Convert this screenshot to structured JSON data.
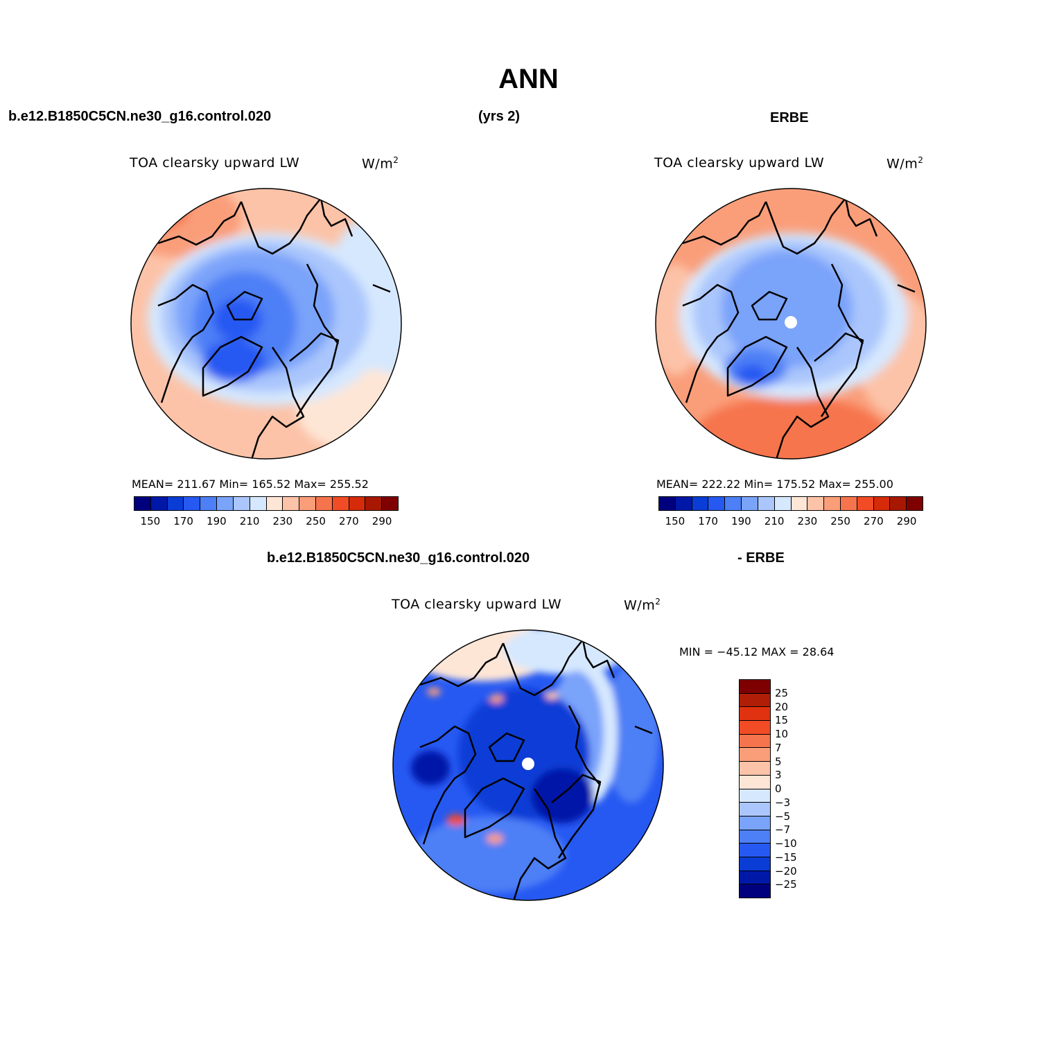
{
  "header": {
    "season": "ANN",
    "case_name": "b.e12.B1850C5CN.ne30_g16.control.020",
    "years": "(yrs 2)",
    "obs_name": "ERBE",
    "diff_case_name": "b.e12.B1850C5CN.ne30_g16.control.020",
    "diff_obs_name": "- ERBE"
  },
  "panels": {
    "model": {
      "variable": "TOA clearsky upward LW",
      "units": "W/m",
      "units_sup": "2",
      "stats": "MEAN= 211.67   Min= 165.52   Max= 255.52"
    },
    "obs": {
      "variable": "TOA clearsky upward LW",
      "units": "W/m",
      "units_sup": "2",
      "stats": "MEAN= 222.22   Min= 175.52   Max= 255.00"
    },
    "diff": {
      "variable": "TOA clearsky upward LW",
      "units": "W/m",
      "units_sup": "2",
      "stats": "MIN = −45.12 MAX =   28.64"
    }
  },
  "colorbar_abs": {
    "tick_labels": [
      "150",
      "170",
      "190",
      "210",
      "230",
      "250",
      "270",
      "290"
    ],
    "colors": [
      "#00007f",
      "#0018a8",
      "#0a3cd6",
      "#2659f2",
      "#4d7ff6",
      "#7aa3fa",
      "#aac6fc",
      "#d6e8fe",
      "#fee6d6",
      "#fcc3a8",
      "#fa9e7a",
      "#f6744d",
      "#f24c26",
      "#d62b0a",
      "#a81800",
      "#7f0000"
    ]
  },
  "colorbar_diff": {
    "tick_labels": [
      "25",
      "20",
      "15",
      "10",
      "7",
      "5",
      "3",
      "0",
      "−3",
      "−5",
      "−7",
      "−10",
      "−15",
      "−20",
      "−25"
    ],
    "colors": [
      "#7f0000",
      "#b01e08",
      "#e03210",
      "#f24c26",
      "#f6744d",
      "#fa9e7a",
      "#fcc3a8",
      "#fee6d6",
      "#d6e8fe",
      "#aac6fc",
      "#7aa3fa",
      "#4d7ff6",
      "#2659f2",
      "#0a3cd6",
      "#0018a8",
      "#00007f"
    ]
  },
  "chart_data": [
    {
      "type": "heatmap",
      "title": "TOA clearsky upward LW",
      "subtitle": "b.e12.B1850C5CN.ne30_g16.control.020 (yrs 2)",
      "units": "W/m2",
      "projection": "north polar stereographic",
      "levels": [
        150,
        160,
        170,
        180,
        190,
        200,
        210,
        220,
        230,
        240,
        250,
        260,
        270,
        280,
        290
      ],
      "mean": 211.67,
      "min": 165.52,
      "max": 255.52
    },
    {
      "type": "heatmap",
      "title": "TOA clearsky upward LW",
      "subtitle": "ERBE",
      "units": "W/m2",
      "projection": "north polar stereographic",
      "levels": [
        150,
        160,
        170,
        180,
        190,
        200,
        210,
        220,
        230,
        240,
        250,
        260,
        270,
        280,
        290
      ],
      "mean": 222.22,
      "min": 175.52,
      "max": 255.0
    },
    {
      "type": "heatmap",
      "title": "TOA clearsky upward LW",
      "subtitle": "b.e12.B1850C5CN.ne30_g16.control.020 - ERBE",
      "units": "W/m2",
      "projection": "north polar stereographic",
      "levels": [
        -25,
        -20,
        -15,
        -10,
        -7,
        -5,
        -3,
        0,
        3,
        5,
        7,
        10,
        15,
        20,
        25
      ],
      "min": -45.12,
      "max": 28.64
    }
  ]
}
